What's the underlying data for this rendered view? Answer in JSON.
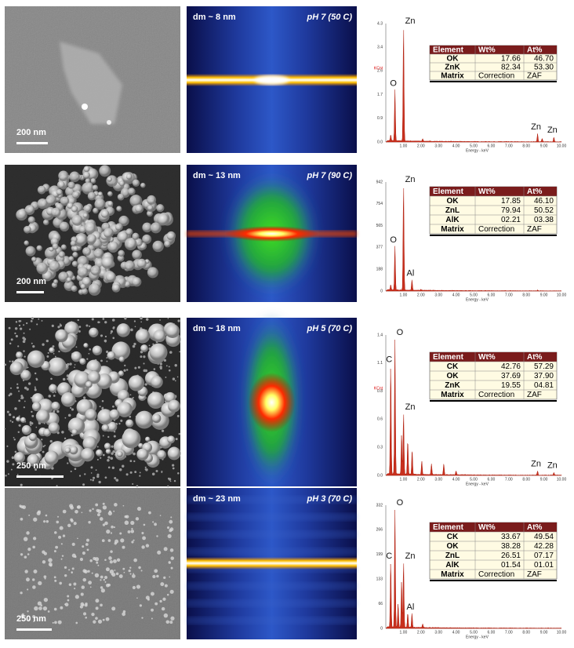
{
  "figure": {
    "energy_ticks": [
      "1.00",
      "2.00",
      "3.00",
      "4.00",
      "5.00",
      "6.00",
      "7.00",
      "8.00",
      "9.00",
      "10.00"
    ],
    "energy_label": "Energy - keV",
    "panels": [
      {
        "scale": "200 nm",
        "size": "dm ~ 8 nm",
        "condition": "pH 7 (50 C)",
        "yticks": [
          "4.3",
          "3.4",
          "2.6",
          "1.7",
          "0.9",
          "0.0"
        ],
        "ylabel": "KCnt",
        "peaks": [
          "O",
          "Zn",
          "Zn",
          "Zn"
        ],
        "table": {
          "header": [
            "Element",
            "Wt%",
            "At%"
          ],
          "rows": [
            [
              "OK",
              "17.66",
              "46.70"
            ],
            [
              "ZnK",
              "82.34",
              "53.30"
            ],
            [
              "Matrix",
              "Correction",
              "ZAF"
            ]
          ]
        }
      },
      {
        "scale": "200 nm",
        "size": "dm ~ 13 nm",
        "condition": "pH 7 (90 C)",
        "yticks": [
          "942",
          "754",
          "565",
          "377",
          "188",
          "0"
        ],
        "peaks": [
          "Zn",
          "O",
          "Al"
        ],
        "table": {
          "header": [
            "Element",
            "Wt%",
            "At%"
          ],
          "rows": [
            [
              "OK",
              "17.85",
              "46.10"
            ],
            [
              "ZnL",
              "79.94",
              "50.52"
            ],
            [
              "AlK",
              "02.21",
              "03.38"
            ],
            [
              "Matrix",
              "Correction",
              "ZAF"
            ]
          ]
        }
      },
      {
        "scale": "250 nm",
        "size": "dm ~ 18 nm",
        "condition": "pH 5 (70 C)",
        "yticks": [
          "1.4",
          "1.1",
          "0.8",
          "0.6",
          "0.3",
          "0.0"
        ],
        "ylabel": "KCnt",
        "peaks": [
          "O",
          "C",
          "Zn",
          "Zn",
          "Zn"
        ],
        "table": {
          "header": [
            "Element",
            "Wt%",
            "At%"
          ],
          "rows": [
            [
              "CK",
              "42.76",
              "57.29"
            ],
            [
              "OK",
              "37.69",
              "37.90"
            ],
            [
              "ZnK",
              "19.55",
              "04.81"
            ],
            [
              "Matrix",
              "Correction",
              "ZAF"
            ]
          ]
        }
      },
      {
        "scale": "250 nm",
        "size": "dm ~ 23 nm",
        "condition": "pH 3 (70 C)",
        "yticks": [
          "332",
          "266",
          "199",
          "133",
          "66",
          "0"
        ],
        "peaks": [
          "O",
          "C",
          "Zn",
          "Al"
        ],
        "table": {
          "header": [
            "Element",
            "Wt%",
            "At%"
          ],
          "rows": [
            [
              "CK",
              "33.67",
              "49.54"
            ],
            [
              "OK",
              "38.28",
              "42.28"
            ],
            [
              "ZnL",
              "26.51",
              "07.17"
            ],
            [
              "AlK",
              "01.54",
              "01.01"
            ],
            [
              "Matrix",
              "Correction",
              "ZAF"
            ]
          ]
        }
      }
    ]
  }
}
